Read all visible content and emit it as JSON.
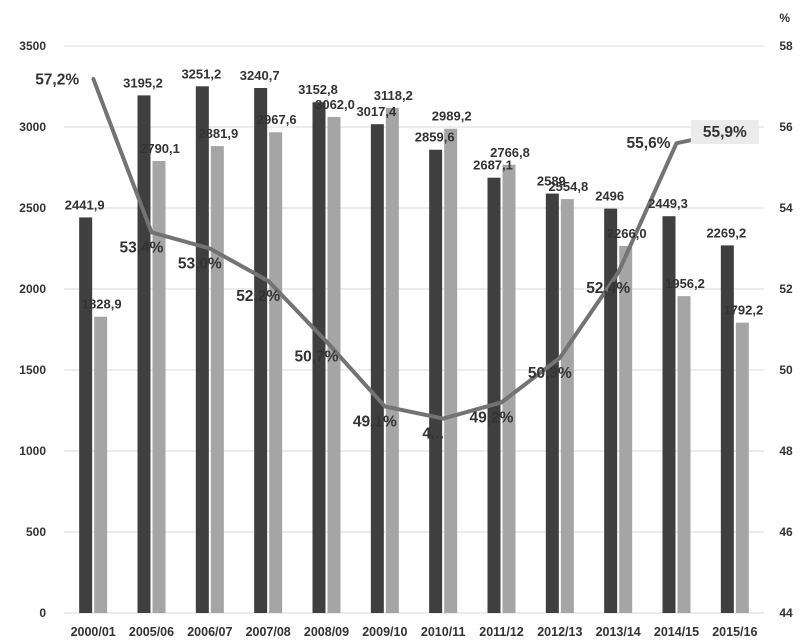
{
  "chart_data": {
    "type": "bar",
    "categories": [
      "2000/01",
      "2005/06",
      "2006/07",
      "2007/08",
      "2008/09",
      "2009/10",
      "2010/11",
      "2011/12",
      "2012/13",
      "2013/14",
      "2014/15",
      "2015/16"
    ],
    "series": [
      {
        "values": [
          2441.9,
          3195.2,
          3251.2,
          3240.7,
          3152.8,
          3017.4,
          2859.6,
          2687.1,
          2589,
          2496,
          2449.3,
          2269.2
        ],
        "labels": [
          "2441,9",
          "3195,2",
          "3251,2",
          "3240,7",
          "3152,8",
          "3017,4",
          "2859,6",
          "2687,1",
          "2589",
          "2496",
          "2449,3",
          "2269,2"
        ],
        "color": "#3f3f3f",
        "axis": "left"
      },
      {
        "values": [
          1828.9,
          2790.1,
          2881.9,
          2967.6,
          3062.0,
          3118.2,
          2989.2,
          2766.8,
          2554.8,
          2266.0,
          1956.2,
          1792.2
        ],
        "labels": [
          "1828,9",
          "2790,1",
          "2881,9",
          "2967,6",
          "3062,0",
          "3118,2",
          "2989,2",
          "2766,8",
          "2554,8",
          "2266,0",
          "1956,2",
          "1792,2"
        ],
        "color": "#a5a5a5",
        "axis": "left"
      },
      {
        "type": "line",
        "values": [
          57.2,
          53.4,
          53.0,
          52.2,
          50.7,
          49.1,
          48.8,
          49.2,
          50.3,
          52.4,
          55.6,
          55.9
        ],
        "labels": [
          "57,2%",
          "53,4%",
          "53,0%",
          "52,2%",
          "50,7%",
          "49,1%",
          "4...",
          "49,2%",
          "50,3%",
          "52,4%",
          "55,6%",
          "55,9%"
        ],
        "color": "#737373",
        "axis": "right"
      }
    ],
    "yticks_left": [
      "0",
      "500",
      "1000",
      "1500",
      "2000",
      "2500",
      "3000",
      "3500"
    ],
    "ylim_left": [
      0,
      3500
    ],
    "yticks_right": [
      "44",
      "46",
      "48",
      "50",
      "52",
      "54",
      "56",
      "58"
    ],
    "ylim_right": [
      44,
      58
    ],
    "y2unit": "%",
    "grid": true,
    "legend": "none"
  }
}
